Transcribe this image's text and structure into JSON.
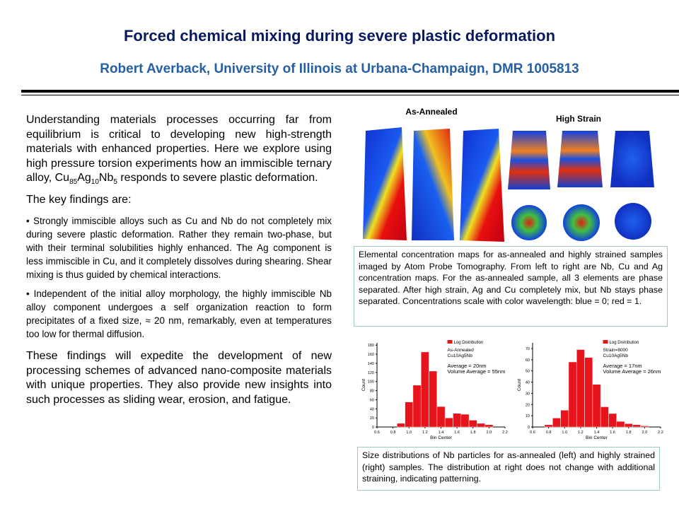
{
  "header": {
    "title": "Forced chemical mixing during severe plastic deformation",
    "subtitle": "Robert Averback, University of Illinois at Urbana-Champaign, DMR 1005813"
  },
  "body": {
    "intro": [
      "Understanding materials processes occurring far from equilibrium is critical to developing new high-strength materials with enhanced properties. Here we explore using high pressure torsion experiments how an immiscible ternary alloy, Cu",
      "85",
      "Ag",
      "10",
      "Nb",
      "5",
      " responds to severe plastic deformation."
    ],
    "findings_heading": "The key findings are:",
    "bullets": [
      "• Strongly immiscible alloys such as Cu and Nb do not completely mix during severe plastic deformation. Rather they remain two-phase, but with their terminal solubilities highly enhanced. The Ag component is less immiscible in Cu, and it completely dissolves during shearing. Shear mixing is thus guided by chemical interactions.",
      "• Independent of the initial alloy morphology, the highly immiscible Nb alloy component undergoes a self organization reaction to form precipitates of a fixed size, ≈ 20 nm, remarkably, even at temperatures too low for thermal diffusion."
    ],
    "conclusion": "These findings will expedite the development of new processing schemes of advanced nano-composite materials with unique properties. They also provide new insights into such processes as sliding wear, erosion, and fatigue."
  },
  "figure": {
    "label_left": "As-Annealed",
    "label_right": "High Strain",
    "caption": "Elemental concentration maps for as-annealed and highly strained samples imaged by Atom Probe Tomography. From left to right are Nb, Cu and Ag concentration maps. For the as-annealed sample, all 3 elements are phase separated. After high strain, Ag and Cu completely mix, but Nb stays phase separated. Concentrations scale with color wavelength: blue = 0; red = 1."
  },
  "chart_data": [
    {
      "type": "histogram",
      "legend": "Log Distribution",
      "color": "#e8141b",
      "x_label": "Bin Center",
      "y_label": "Count",
      "annotations": [
        "As-Annealed",
        "Cu10Ag5Nb",
        "Average = 20nm",
        "Volume Average = 55nm"
      ],
      "bins": [
        0.85,
        0.95,
        1.05,
        1.15,
        1.25,
        1.35,
        1.45,
        1.55,
        1.65,
        1.75,
        1.85,
        1.95,
        2.05
      ],
      "counts": [
        8,
        55,
        92,
        165,
        123,
        45,
        20,
        30,
        28,
        15,
        8,
        5
      ],
      "xlim": [
        0.6,
        2.2
      ],
      "xticks": [
        0.6,
        0.8,
        {
          "value": 1.0,
          "label": "1.0"
        },
        1.2,
        1.4,
        1.6,
        1.8,
        {
          "value": 2.0,
          "label": "2.0"
        },
        2.2
      ],
      "ylim": [
        0,
        185
      ],
      "yticks": [
        0,
        20,
        40,
        60,
        80,
        100,
        120,
        140,
        160,
        180
      ]
    },
    {
      "type": "histogram",
      "legend": "Log Distribution",
      "color": "#e8141b",
      "x_label": "Bin Center",
      "y_label": "Count",
      "annotations": [
        "Strain=8000",
        "Cu10Ag5Nb",
        "Average = 17nm",
        "Volume Average = 26nm"
      ],
      "bins": [
        0.75,
        0.85,
        0.95,
        1.05,
        1.15,
        1.25,
        1.35,
        1.45,
        1.55,
        1.65,
        1.75,
        1.85,
        1.95,
        2.05
      ],
      "counts": [
        2,
        8,
        15,
        58,
        69,
        62,
        38,
        18,
        12,
        5,
        3,
        2,
        1
      ],
      "xlim": [
        0.6,
        2.2
      ],
      "xticks": [
        0.6,
        0.8,
        {
          "value": 1.0,
          "label": "1.0"
        },
        1.2,
        1.4,
        1.6,
        1.8,
        {
          "value": 2.0,
          "label": "2.0"
        },
        2.2
      ],
      "ylim": [
        0,
        75
      ],
      "yticks": [
        0,
        10,
        20,
        30,
        40,
        50,
        60,
        70
      ]
    }
  ],
  "caption2": "Size distributions of Nb particles for as-annealed (left) and highly strained (right) samples. The distribution at right does not change with additional straining, indicating patterning."
}
